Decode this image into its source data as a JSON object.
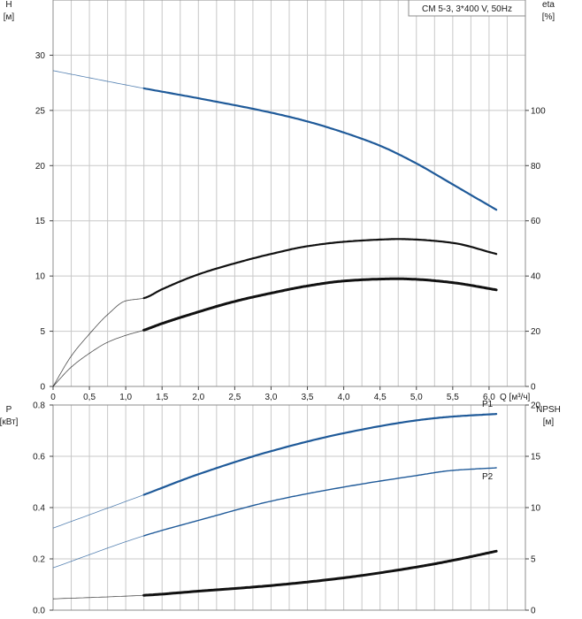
{
  "chart_data": [
    {
      "type": "line",
      "legend_box": "CM 5-3, 3*400 V, 50Hz",
      "xlabel": "Q [м³/ч]",
      "xlim": [
        0,
        6.5
      ],
      "x_ticks": [
        "0",
        "0,5",
        "1,0",
        "1,5",
        "2,0",
        "2,5",
        "3,0",
        "3,5",
        "4,0",
        "4,5",
        "5,0",
        "5,5",
        "6,0"
      ],
      "y_left": {
        "label_line1": "H",
        "label_line2": "[м]",
        "lim": [
          0,
          35
        ],
        "ticks": [
          "0",
          "5",
          "10",
          "15",
          "20",
          "25",
          "30"
        ]
      },
      "y_right": {
        "label_line1": "eta",
        "label_line2": "[%]",
        "lim": [
          0,
          140
        ],
        "ticks": [
          "0",
          "20",
          "40",
          "60",
          "80",
          "100"
        ]
      },
      "grid": true,
      "series": [
        {
          "color": "#1f5a99",
          "axis": "left",
          "x": [
            0,
            1.25,
            2,
            3,
            3.5,
            4,
            4.5,
            5,
            5.5,
            6.1
          ],
          "y": [
            28.6,
            27.0,
            26.1,
            24.8,
            24.0,
            23.0,
            21.8,
            20.2,
            18.3,
            16.0
          ],
          "op_start": 1.25
        },
        {
          "color": "#111111",
          "axis": "right",
          "x": [
            0,
            0.25,
            0.5,
            0.75,
            1.0,
            1.25,
            1.5,
            2.0,
            2.5,
            3.0,
            3.5,
            4.0,
            4.5,
            4.75,
            5.0,
            5.5,
            6.1
          ],
          "y": [
            0,
            11,
            19,
            26,
            31,
            32.0,
            35.2,
            40.6,
            44.6,
            48.0,
            50.8,
            52.4,
            53.2,
            53.4,
            53.2,
            52.0,
            48.0
          ],
          "op_start": 1.25
        },
        {
          "color": "#111111",
          "axis": "right",
          "x": [
            0,
            0.25,
            0.5,
            0.75,
            1.0,
            1.25,
            1.5,
            2.0,
            2.5,
            3.0,
            3.5,
            4.0,
            4.5,
            4.75,
            5.0,
            5.5,
            6.1
          ],
          "y": [
            0,
            7,
            12,
            16,
            18.5,
            20.4,
            22.8,
            27.0,
            30.8,
            33.8,
            36.4,
            38.2,
            38.9,
            39.0,
            38.8,
            37.6,
            35.0
          ],
          "op_start": 1.25,
          "bold": true
        }
      ]
    },
    {
      "type": "line",
      "xlim": [
        0,
        6.5
      ],
      "y_left": {
        "label_line1": "P",
        "label_line2": "[кВт]",
        "lim": [
          0,
          0.8
        ],
        "ticks": [
          "0.0",
          "0.2",
          "0.4",
          "0.6",
          "0.8"
        ]
      },
      "y_right": {
        "label_line1": "NPSH",
        "label_line2": "[м]",
        "lim": [
          0,
          20
        ],
        "ticks": [
          "0",
          "5",
          "10",
          "15",
          "20"
        ]
      },
      "grid": true,
      "series": [
        {
          "name": "P1",
          "color": "#1f5a99",
          "axis": "left",
          "x": [
            0,
            1.25,
            2,
            3,
            4,
            5,
            5.5,
            6.1
          ],
          "y": [
            0.32,
            0.45,
            0.53,
            0.62,
            0.69,
            0.74,
            0.755,
            0.765
          ],
          "op_start": 1.25
        },
        {
          "name": "P2",
          "color": "#1f5a99",
          "axis": "left",
          "x": [
            0,
            1.25,
            2,
            3,
            4,
            5,
            5.5,
            6.1
          ],
          "y": [
            0.165,
            0.29,
            0.35,
            0.425,
            0.48,
            0.525,
            0.545,
            0.555
          ],
          "op_start": 1.25,
          "thin": true
        },
        {
          "color": "#111111",
          "axis": "right",
          "x": [
            0,
            1.25,
            2,
            3,
            4,
            5,
            5.5,
            6.1
          ],
          "y": [
            1.1,
            1.45,
            1.85,
            2.4,
            3.15,
            4.2,
            4.85,
            5.75
          ],
          "op_start": 1.25,
          "bold": true
        }
      ]
    }
  ]
}
